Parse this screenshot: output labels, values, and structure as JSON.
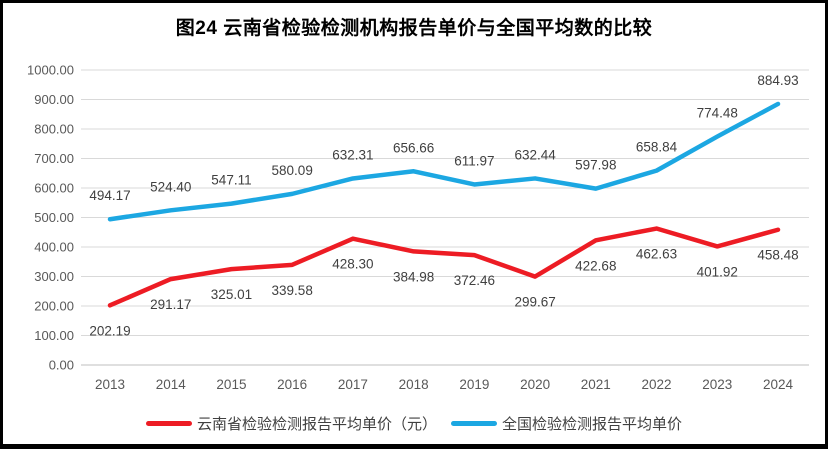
{
  "title": "图24 云南省检验检测机构报告单价与全国平均数的比较",
  "chart_data": {
    "type": "line",
    "title": "图24 云南省检验检测机构报告单价与全国平均数的比较",
    "categories": [
      "2013",
      "2014",
      "2015",
      "2016",
      "2017",
      "2018",
      "2019",
      "2020",
      "2021",
      "2022",
      "2023",
      "2024"
    ],
    "series": [
      {
        "id": "yunnan",
        "name": "云南省检验检测报告平均单价（元）",
        "color": "#ED1C24",
        "label_position": "below",
        "values": [
          202.19,
          291.17,
          325.01,
          339.58,
          428.3,
          384.98,
          372.46,
          299.67,
          422.68,
          462.63,
          401.92,
          458.48
        ]
      },
      {
        "id": "national",
        "name": "全国检验检测报告平均单价",
        "color": "#1CA7E2",
        "label_position": "above",
        "values": [
          494.17,
          524.4,
          547.11,
          580.09,
          632.31,
          656.66,
          611.97,
          632.44,
          597.98,
          658.84,
          774.48,
          884.93
        ]
      }
    ],
    "xlabel": "",
    "ylabel": "",
    "ylim": [
      0,
      1000
    ],
    "y_ticks": [
      "0.00",
      "100.00",
      "200.00",
      "300.00",
      "400.00",
      "500.00",
      "600.00",
      "700.00",
      "800.00",
      "900.00",
      "1000.00"
    ],
    "grid": "horizontal",
    "legend_position": "bottom",
    "colors": {
      "gridline": "#D9D9D9",
      "axis_line": "#BFBFBF",
      "tick_text": "#595959",
      "data_label_text": "#404040"
    }
  }
}
